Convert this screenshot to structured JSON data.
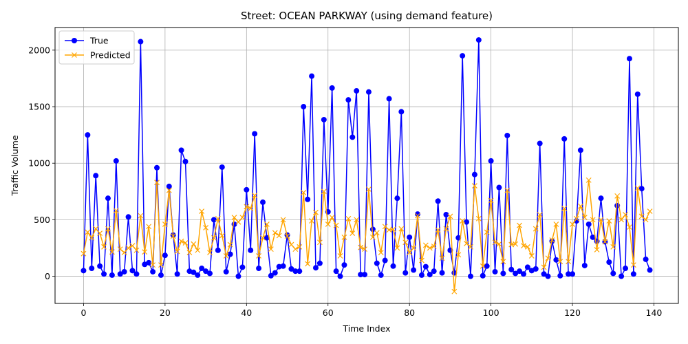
{
  "chart_data": {
    "type": "line",
    "title": "Street: OCEAN PARKWAY (using demand feature)",
    "xlabel": "Time Index",
    "ylabel": "Traffic Volume",
    "xlim": [
      -7,
      146
    ],
    "ylim": [
      -240,
      2200
    ],
    "xticks": [
      0,
      20,
      40,
      60,
      80,
      100,
      120,
      140
    ],
    "yticks": [
      0,
      500,
      1000,
      1500,
      2000
    ],
    "grid": true,
    "legend_position": "upper-left",
    "series": [
      {
        "name": "True",
        "color": "#0000ff",
        "marker": "circle",
        "values": [
          50,
          1250,
          70,
          890,
          90,
          20,
          690,
          10,
          1020,
          20,
          40,
          525,
          50,
          20,
          2075,
          105,
          120,
          40,
          960,
          10,
          185,
          795,
          365,
          20,
          1115,
          1015,
          45,
          35,
          10,
          70,
          45,
          25,
          500,
          230,
          965,
          40,
          195,
          460,
          0,
          80,
          765,
          230,
          1260,
          70,
          655,
          340,
          5,
          30,
          85,
          90,
          365,
          65,
          45,
          45,
          1500,
          680,
          1770,
          75,
          115,
          1385,
          570,
          1665,
          45,
          0,
          100,
          1560,
          1230,
          1640,
          15,
          15,
          1630,
          415,
          115,
          10,
          140,
          1570,
          90,
          690,
          1455,
          30,
          345,
          55,
          550,
          10,
          85,
          15,
          45,
          665,
          30,
          545,
          230,
          30,
          340,
          1950,
          480,
          0,
          900,
          2090,
          5,
          90,
          1020,
          40,
          785,
          25,
          1245,
          60,
          25,
          45,
          20,
          80,
          50,
          65,
          1175,
          20,
          0,
          310,
          145,
          5,
          1215,
          20,
          20,
          490,
          1115,
          95,
          460,
          345,
          310,
          690,
          305,
          125,
          25,
          625,
          0,
          70,
          1925,
          20,
          1610,
          775,
          150,
          55
        ]
      },
      {
        "name": "Predicted",
        "color": "#ffa500",
        "marker": "x",
        "values": [
          200,
          390,
          340,
          420,
          380,
          260,
          420,
          215,
          580,
          240,
          210,
          250,
          270,
          230,
          535,
          215,
          440,
          100,
          830,
          100,
          460,
          760,
          355,
          220,
          310,
          295,
          210,
          285,
          230,
          575,
          430,
          210,
          340,
          510,
          360,
          180,
          280,
          520,
          480,
          520,
          615,
          600,
          715,
          180,
          340,
          460,
          240,
          385,
          360,
          500,
          355,
          280,
          240,
          260,
          740,
          110,
          490,
          565,
          300,
          750,
          460,
          520,
          450,
          180,
          345,
          510,
          380,
          500,
          255,
          240,
          770,
          345,
          385,
          210,
          440,
          410,
          415,
          250,
          420,
          300,
          210,
          250,
          535,
          140,
          275,
          250,
          265,
          410,
          160,
          420,
          530,
          -135,
          190,
          490,
          290,
          260,
          800,
          510,
          90,
          390,
          670,
          300,
          285,
          130,
          760,
          280,
          285,
          450,
          270,
          260,
          180,
          420,
          545,
          80,
          160,
          320,
          460,
          130,
          600,
          130,
          460,
          510,
          620,
          520,
          850,
          500,
          235,
          500,
          305,
          490,
          260,
          710,
          500,
          545,
          435,
          100,
          780,
          530,
          500,
          575
        ]
      }
    ]
  }
}
